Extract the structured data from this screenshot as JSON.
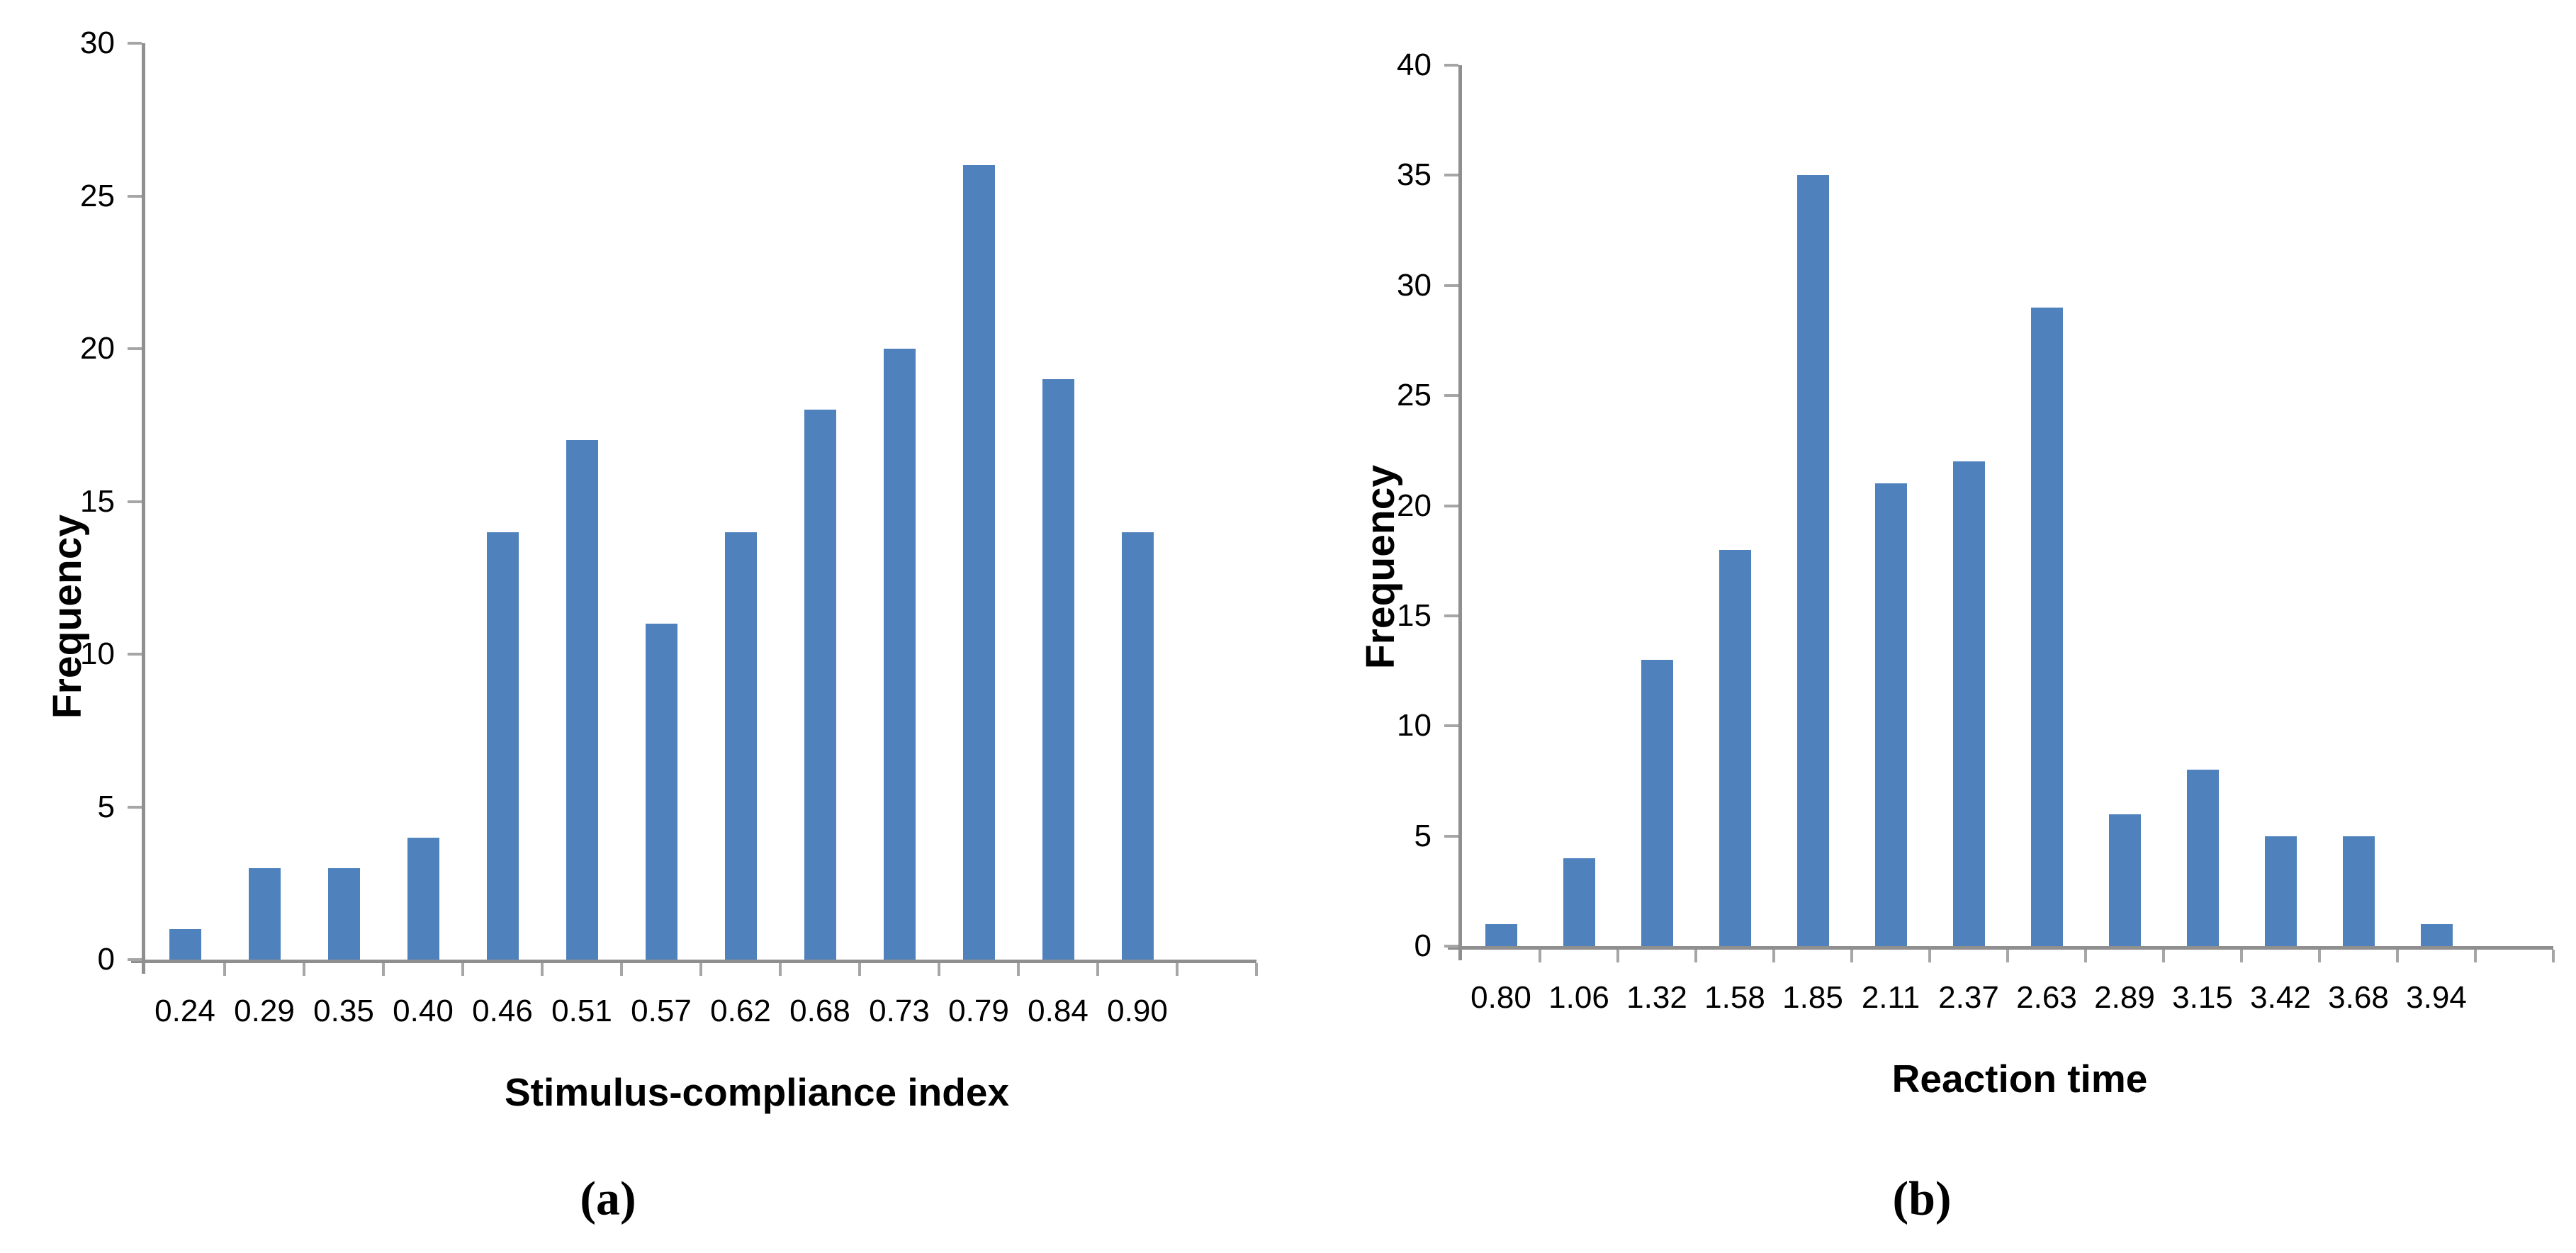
{
  "figure": {
    "background": "#FFFFFF",
    "bar_color": "#4F81BD",
    "axis_color": "#8F8F8F",
    "tick_color": "#A6A6A6",
    "text_color": "#000000"
  },
  "chart_data": [
    {
      "type": "bar",
      "panel_label": "(a)",
      "ylabel": "Frequency",
      "xlabel": "Stimulus-compliance index",
      "ylim": [
        0,
        30
      ],
      "ytick_step": 5,
      "yticks": [
        "0",
        "5",
        "10",
        "15",
        "20",
        "25",
        "30"
      ],
      "categories": [
        "0.24",
        "0.29",
        "0.35",
        "0.40",
        "0.46",
        "0.51",
        "0.57",
        "0.62",
        "0.68",
        "0.73",
        "0.79",
        "0.84",
        "0.90"
      ],
      "values": [
        1,
        3,
        3,
        4,
        14,
        17,
        11,
        14,
        18,
        20,
        26,
        19,
        14
      ],
      "grid": "off",
      "legend": "none"
    },
    {
      "type": "bar",
      "panel_label": "(b)",
      "ylabel": "Frequency",
      "xlabel": "Reaction time",
      "ylim": [
        0,
        40
      ],
      "ytick_step": 5,
      "yticks": [
        "0",
        "5",
        "10",
        "15",
        "20",
        "25",
        "30",
        "35",
        "40"
      ],
      "categories": [
        "0.80",
        "1.06",
        "1.32",
        "1.58",
        "1.85",
        "2.11",
        "2.37",
        "2.63",
        "2.89",
        "3.15",
        "3.42",
        "3.68",
        "3.94"
      ],
      "values": [
        1,
        4,
        13,
        18,
        35,
        21,
        22,
        29,
        6,
        8,
        5,
        5,
        1
      ],
      "grid": "off",
      "legend": "none"
    }
  ]
}
